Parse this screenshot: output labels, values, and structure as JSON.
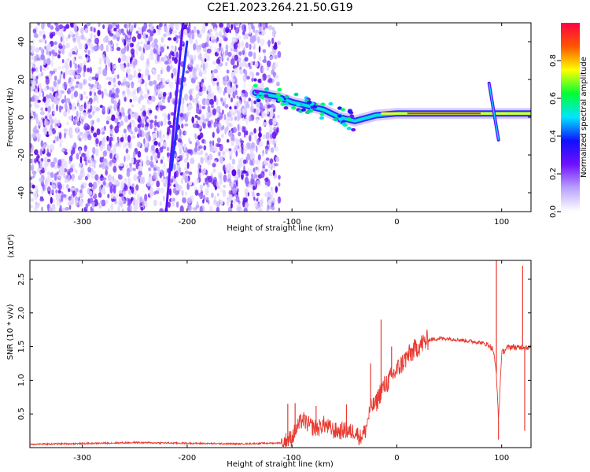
{
  "figure": {
    "title": "C2E1.2023.264.21.50.G19"
  },
  "chart_data": [
    {
      "type": "heatmap",
      "title": "C2E1.2023.264.21.50.G19",
      "xlabel": "Height of straight line (km)",
      "ylabel": "Frequency (Hz)",
      "xlim": [
        -350,
        128
      ],
      "ylim": [
        -50,
        50
      ],
      "x_ticks": [
        -300,
        -200,
        -100,
        0,
        100
      ],
      "y_ticks": [
        -40,
        -20,
        0,
        20,
        40
      ],
      "grid": false,
      "features": {
        "noise_region_x": [
          -350,
          -112
        ],
        "signal_track": [
          {
            "x": -135,
            "y": 13
          },
          {
            "x": -115,
            "y": 11
          },
          {
            "x": -100,
            "y": 8
          },
          {
            "x": -85,
            "y": 6
          },
          {
            "x": -70,
            "y": 4
          },
          {
            "x": -55,
            "y": 0
          },
          {
            "x": -40,
            "y": -2
          },
          {
            "x": -20,
            "y": 1
          },
          {
            "x": 0,
            "y": 2
          },
          {
            "x": 40,
            "y": 2
          },
          {
            "x": 80,
            "y": 2
          },
          {
            "x": 128,
            "y": 2
          }
        ],
        "streaks": [
          {
            "x": [
              -220,
              -204
            ],
            "y": [
              -50,
              50
            ]
          },
          {
            "x": [
              -215,
              -200
            ],
            "y": [
              -28,
              40
            ]
          }
        ],
        "spike": {
          "x": [
            88,
            97
          ],
          "y": [
            -12,
            18
          ]
        }
      },
      "colorbar": {
        "label": "Normalized spectral amplitude",
        "range": [
          0,
          1
        ],
        "ticks": [
          "0.0",
          "0.2",
          "0.4",
          "0.6",
          "0.8"
        ],
        "tick_values": [
          0,
          0.2,
          0.4,
          0.6,
          0.8
        ],
        "colors": [
          "#ffffff",
          "#b9a2ff",
          "#7010ff",
          "#1010ff",
          "#00e5ff",
          "#00ff33",
          "#ffff00",
          "#ff5500",
          "#ff0044"
        ]
      }
    },
    {
      "type": "line",
      "title": "",
      "xlabel": "Height of straight line (km)",
      "ylabel": "SNR (10 * v/v)",
      "y_multiplier": "(x10⁴)",
      "xlim": [
        -350,
        128
      ],
      "ylim": [
        0,
        27800
      ],
      "x_ticks": [
        -300,
        -200,
        -100,
        0,
        100
      ],
      "y_ticks": [
        5000,
        10000,
        15000,
        20000,
        25000
      ],
      "y_tick_labels": [
        "0.5",
        "1.0",
        "1.5",
        "2.0",
        "2.5"
      ],
      "grid": false,
      "color": "#e83a30",
      "series": [
        {
          "x": [
            -350,
            -300,
            -250,
            -200,
            -150,
            -110,
            -100,
            -95,
            -90,
            -85,
            -80,
            -75,
            -70,
            -65,
            -60,
            -55,
            -50,
            -45,
            -40,
            -35,
            -30,
            -25,
            -20,
            -15,
            -10,
            -5,
            0,
            10,
            20,
            30,
            40,
            50,
            60,
            70,
            80,
            88,
            92,
            95,
            97,
            100,
            105,
            110,
            115,
            120,
            125,
            128
          ],
          "y": [
            500,
            600,
            750,
            650,
            550,
            700,
            1500,
            3000,
            4200,
            3500,
            3000,
            2800,
            3500,
            3000,
            2500,
            2400,
            2600,
            2300,
            2500,
            1500,
            2500,
            6000,
            6500,
            8500,
            9500,
            10500,
            11500,
            13500,
            15000,
            16000,
            16200,
            16200,
            16000,
            15800,
            15600,
            15200,
            14500,
            11000,
            4000,
            14000,
            14800,
            15000,
            14800,
            15000,
            14900,
            14800
          ]
        }
      ],
      "spikes": [
        {
          "x": -104,
          "y": 6500
        },
        {
          "x": -97,
          "y": 6600
        },
        {
          "x": -77,
          "y": 6200
        },
        {
          "x": -48,
          "y": 6400
        },
        {
          "x": -25,
          "y": 12500
        },
        {
          "x": -15,
          "y": 19000
        },
        {
          "x": -5,
          "y": 15000
        },
        {
          "x": 95,
          "y": 27800
        },
        {
          "x": 97,
          "y": 1200
        },
        {
          "x": 120,
          "y": 27000
        },
        {
          "x": 122,
          "y": 2500
        }
      ]
    }
  ]
}
